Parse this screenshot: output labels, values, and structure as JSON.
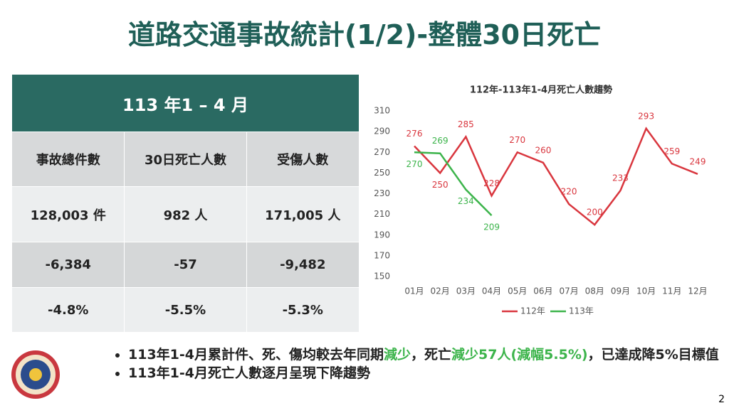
{
  "title": "道路交通事故統計(1/2)-整體30日死亡",
  "table": {
    "header": "113 年1 – 4 月",
    "columns": [
      "事故總件數",
      "30日死亡人數",
      "受傷人數"
    ],
    "rows": [
      [
        "128,003 件",
        "982 人",
        "171,005 人"
      ],
      [
        "-6,384",
        "-57",
        "-9,482"
      ],
      [
        "-4.8%",
        "-5.5%",
        "-5.3%"
      ]
    ]
  },
  "chart_data": {
    "type": "line",
    "title": "112年-113年1-4月死亡人數趨勢",
    "categories": [
      "01月",
      "02月",
      "03月",
      "04月",
      "05月",
      "06月",
      "07月",
      "08月",
      "09月",
      "10月",
      "11月",
      "12月"
    ],
    "series": [
      {
        "name": "112年",
        "color": "#d9363e",
        "values": [
          276,
          250,
          285,
          228,
          270,
          260,
          220,
          200,
          233,
          293,
          259,
          249
        ]
      },
      {
        "name": "113年",
        "color": "#3cb44b",
        "values": [
          270,
          269,
          234,
          209,
          null,
          null,
          null,
          null,
          null,
          null,
          null,
          null
        ]
      }
    ],
    "ylim": [
      150,
      310
    ],
    "yticks": [
      150,
      170,
      190,
      210,
      230,
      250,
      270,
      290,
      310
    ],
    "legend": "bottom"
  },
  "bullets": [
    [
      {
        "text": "113年1-4月累計件、死、傷均較去年同期"
      },
      {
        "text": "減少",
        "color": "#3cb44b"
      },
      {
        "text": "，死亡"
      },
      {
        "text": "減少57人(減幅5.5%)",
        "color": "#3cb44b"
      },
      {
        "text": "，已達成降5%目標值"
      }
    ],
    [
      {
        "text": "113年1-4月死亡人數逐月呈現下降趨勢"
      }
    ]
  ],
  "page_number": "2"
}
